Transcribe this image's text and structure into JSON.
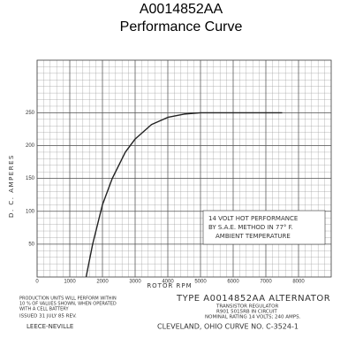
{
  "chart_data": {
    "type": "line",
    "title": "A0014852AA",
    "subtitle": "Performance Curve",
    "y_label": "D. C. AMPERES",
    "x_label": "ROTOR RPM",
    "x": [
      1500,
      1700,
      2000,
      2300,
      2700,
      3000,
      3500,
      4000,
      4500,
      5000,
      6000,
      7000,
      7500
    ],
    "series": [
      {
        "name": "14 VOLT HOT PERFORMANCE",
        "color": "#222222",
        "values": [
          0,
          50,
          110,
          150,
          190,
          210,
          232,
          243,
          248,
          250,
          250,
          250,
          250
        ]
      }
    ],
    "xlim": [
      0,
      9000
    ],
    "xticks": [
      0,
      1000,
      2000,
      3000,
      4000,
      5000,
      6000,
      7000,
      8000
    ],
    "ylim": [
      0,
      330
    ],
    "yticks": [
      50,
      100,
      150,
      200,
      250
    ],
    "grid": true,
    "annotation": [
      "14 VOLT HOT PERFORMANCE",
      "BY S.A.E. METHOD IN 77° F.",
      "AMBIENT TEMPERATURE"
    ],
    "footer": {
      "notes": [
        "PRODUCTION UNITS WILL PERFORM WITHIN",
        "10 % OF VALUES SHOWN, WHEN OPERATED",
        "WITH A CELL BATTERY"
      ],
      "issued": "ISSUED 31 JULY 85 REV.",
      "maker": "LEECE-NEVILLE",
      "type": "TYPE A0014852AA ALTERNATOR",
      "regulator": "TRANSISTOR REGULATOR",
      "circuit": "R901 5015RB IN CIRCUIT",
      "rating": "NOMINAL RATING 14 VOLTS; 240 AMPS.",
      "curve": "CLEVELAND, OHIO CURVE NO. C-3524-1"
    }
  }
}
